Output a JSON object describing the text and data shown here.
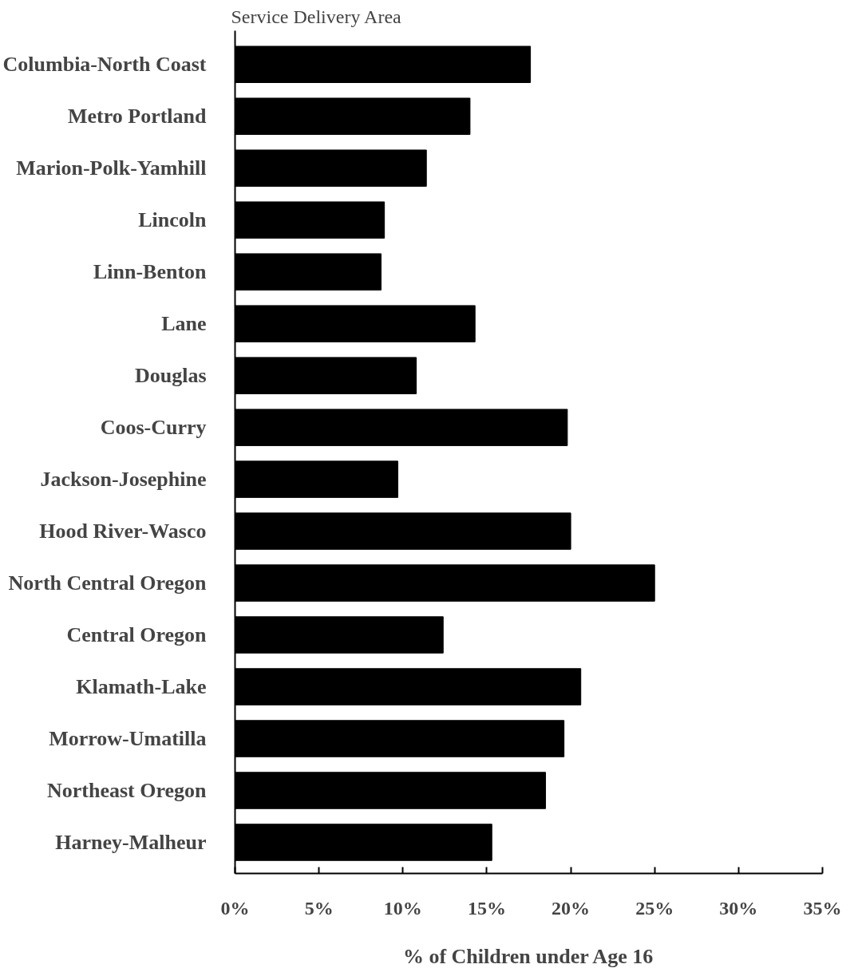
{
  "chart_data": {
    "type": "bar",
    "orientation": "horizontal",
    "ylabel": "Service Delivery Area",
    "xlabel": "% of Children under Age 16",
    "categories": [
      "Columbia-North Coast",
      "Metro Portland",
      "Marion-Polk-Yamhill",
      "Lincoln",
      "Linn-Benton",
      "Lane",
      "Douglas",
      "Coos-Curry",
      "Jackson-Josephine",
      "Hood River-Wasco",
      "North Central Oregon",
      "Central Oregon",
      "Klamath-Lake",
      "Morrow-Umatilla",
      "Northeast Oregon",
      "Harney-Malheur"
    ],
    "values": [
      17.6,
      14.0,
      11.4,
      8.9,
      8.7,
      14.3,
      10.8,
      19.8,
      9.7,
      20.0,
      25.0,
      12.4,
      20.6,
      19.6,
      18.5,
      15.3
    ],
    "color": "#000000",
    "xlim": [
      0,
      35
    ],
    "xticks": [
      {
        "value": 0,
        "label": "0%"
      },
      {
        "value": 5,
        "label": "5%"
      },
      {
        "value": 10,
        "label": "10%"
      },
      {
        "value": 15,
        "label": "15%"
      },
      {
        "value": 20,
        "label": "20%"
      },
      {
        "value": 25,
        "label": "25%"
      },
      {
        "value": 30,
        "label": "30%"
      },
      {
        "value": 35,
        "label": "35%"
      }
    ],
    "grid": false
  }
}
